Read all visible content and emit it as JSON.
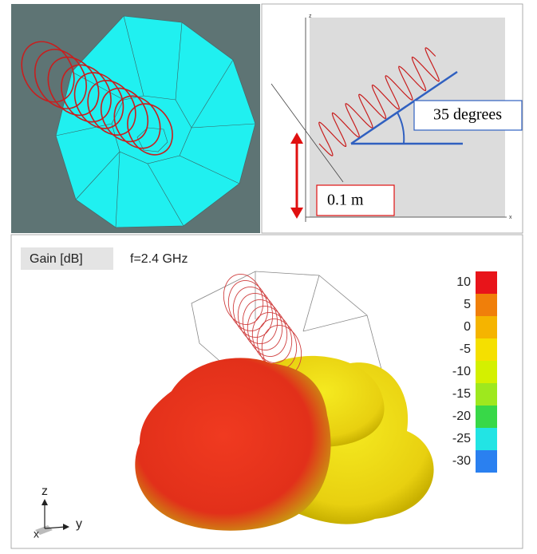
{
  "panels": {
    "geometry": {
      "axes": {
        "z": "z",
        "x": "x"
      },
      "angle_label": "35 degrees",
      "height_label": "0.1 m"
    },
    "pattern": {
      "quantity": "Gain [dB]",
      "frequency": "f=2.4 GHz",
      "colorbar": {
        "labels": [
          10,
          5,
          0,
          -5,
          -10,
          -15,
          -20,
          -25,
          -30
        ],
        "colors": [
          "#e8141a",
          "#f07f0a",
          "#f5b400",
          "#f5e000",
          "#d4f000",
          "#9ee81e",
          "#38d848",
          "#22e4e4",
          "#2a80f0"
        ]
      },
      "axes": {
        "z": "z",
        "y": "y",
        "x": "x"
      }
    }
  }
}
